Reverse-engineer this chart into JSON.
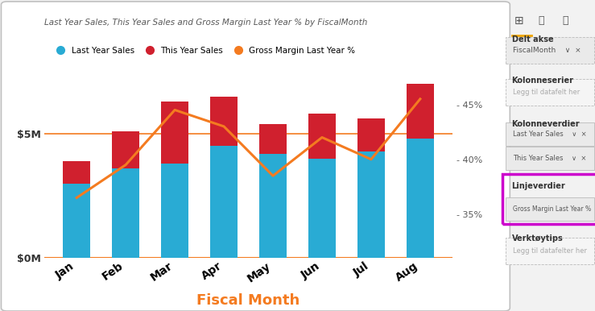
{
  "title": "Last Year Sales, This Year Sales and Gross Margin Last Year % by FiscalMonth",
  "xlabel": "Fiscal Month",
  "months": [
    "Jan",
    "Feb",
    "Mar",
    "Apr",
    "May",
    "Jun",
    "Jul",
    "Aug"
  ],
  "last_year_sales": [
    3.0,
    3.6,
    3.8,
    4.5,
    4.2,
    4.0,
    4.3,
    4.8
  ],
  "this_year_sales": [
    0.9,
    1.5,
    2.5,
    2.0,
    1.2,
    1.8,
    1.3,
    2.2
  ],
  "gross_margin": [
    36.5,
    39.5,
    44.5,
    43.0,
    38.5,
    42.0,
    40.0,
    45.5
  ],
  "bar_color_last": "#29ABD4",
  "bar_color_this": "#D0202E",
  "line_color": "#F47B20",
  "bar_axis_ylim": [
    0,
    7.5
  ],
  "bar_yticks": [
    0,
    5
  ],
  "bar_yticklabels": [
    "$0M",
    "$5M"
  ],
  "line_axis_ylim": [
    31,
    48
  ],
  "line_yticks": [
    35,
    40,
    45
  ],
  "line_yticklabels": [
    "- 35%",
    "- 40%",
    "- 45%"
  ],
  "bg_color": "#F2F2F2",
  "chart_bg": "#FFFFFF",
  "panel_bg": "#F2F2F2",
  "legend_last_year": "Last Year Sales",
  "legend_this_year": "This Year Sales",
  "legend_gross_margin": "Gross Margin Last Year %",
  "title_color": "#595959",
  "xlabel_color": "#F47B20",
  "tick_label_color": "#333333",
  "right_tick_color": "#595959",
  "right_panel_texts": {
    "icons_line": "⊞  💧  🔍",
    "delt_akse": "Delt akse",
    "fiscal_month": "FiscalMonth",
    "kolonneserier": "Kolonneserier",
    "legg_til_1": "Legg til datafelt her",
    "kolonneverdier": "Kolonneverdier",
    "last_year_sales": "Last Year Sales",
    "this_year_sales": "This Year Sales",
    "linjeverdier": "Linjeverdier",
    "gross_margin_lbl": "Gross Margin Last Year %",
    "verktoy": "Verktøytips",
    "legg_til_2": "Legg til datafelter her"
  }
}
